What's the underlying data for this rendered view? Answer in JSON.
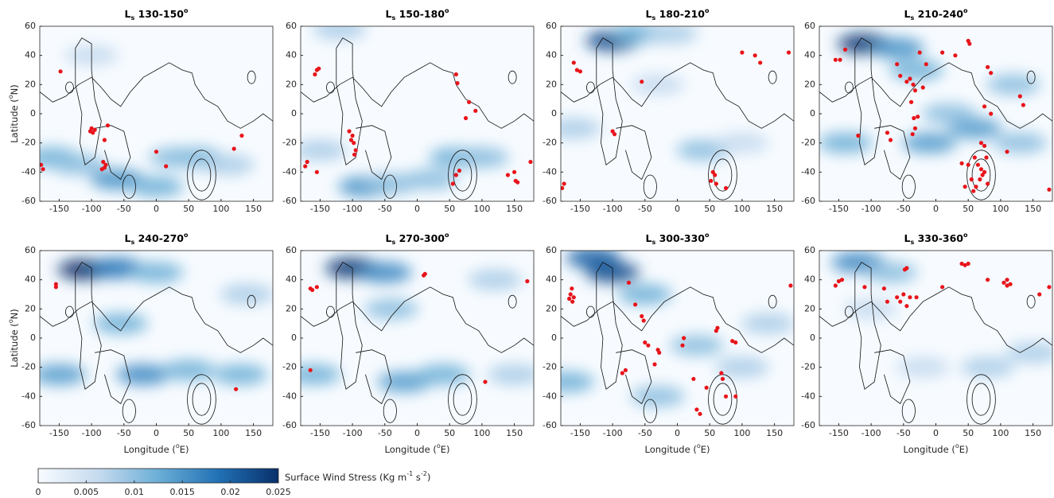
{
  "chart_data": [
    {
      "type": "scatter",
      "title": {
        "symbol": "L",
        "sub": "s",
        "range": " 130-150",
        "sup": "o"
      },
      "ylabel": {
        "text": "Latitude (",
        "sup": "o",
        "end": "N)"
      },
      "xlim": [
        -180,
        180
      ],
      "ylim": [
        -60,
        60
      ],
      "xticks": [
        -150,
        -100,
        -50,
        0,
        50,
        100,
        150
      ],
      "yticks": [
        -60,
        -40,
        -20,
        0,
        20,
        40,
        60
      ],
      "points": {
        "color": "#e8141b",
        "x": [
          -148,
          -178,
          -175,
          -100,
          -98,
          -95,
          -102,
          -75,
          -80,
          -82,
          -80,
          -84,
          -78,
          0,
          15,
          120,
          132
        ],
        "y": [
          29,
          -35,
          -38,
          -10,
          -13,
          -11,
          -12,
          -8,
          -18,
          -33,
          -37,
          -38,
          -35,
          -26,
          -36,
          -24,
          -15
        ]
      },
      "wind": {
        "lon": [
          -160,
          -120,
          -60,
          0,
          60,
          30,
          110,
          -100
        ],
        "lat": [
          -30,
          -35,
          -45,
          -50,
          -30,
          -30,
          -35,
          40
        ],
        "values": [
          0.012,
          0.01,
          0.015,
          0.012,
          0.012,
          0.01,
          0.008,
          0.006
        ]
      }
    },
    {
      "type": "scatter",
      "title": {
        "symbol": "L",
        "sub": "s",
        "range": " 150-180",
        "sup": "o"
      },
      "xlim": [
        -180,
        180
      ],
      "ylim": [
        -60,
        60
      ],
      "xticks": [
        -150,
        -100,
        -50,
        0,
        50,
        100,
        150
      ],
      "yticks": [
        -60,
        -40,
        -20,
        0,
        20,
        40,
        60
      ],
      "points": {
        "color": "#e8141b",
        "x": [
          -158,
          -155,
          -152,
          -170,
          -173,
          -155,
          -105,
          -100,
          -98,
          -95,
          -97,
          -102,
          60,
          62,
          80,
          75,
          90,
          65,
          60,
          55,
          140,
          150,
          152,
          155,
          175
        ],
        "y": [
          27,
          30,
          31,
          -33,
          -36,
          -40,
          -12,
          -15,
          -20,
          -25,
          -28,
          -18,
          27,
          21,
          8,
          -3,
          2,
          -39,
          -42,
          -48,
          -42,
          -40,
          -46,
          -47,
          -33
        ]
      },
      "wind": {
        "lon": [
          -120,
          -80,
          20,
          60,
          100,
          -150,
          -40
        ],
        "lat": [
          58,
          -50,
          -45,
          -30,
          -30,
          -25,
          -48
        ],
        "values": [
          0.008,
          0.015,
          0.01,
          0.012,
          0.01,
          0.008,
          0.01
        ]
      }
    },
    {
      "type": "scatter",
      "title": {
        "symbol": "L",
        "sub": "s",
        "range": " 180-210",
        "sup": "o"
      },
      "xlim": [
        -180,
        180
      ],
      "ylim": [
        -60,
        60
      ],
      "xticks": [
        -150,
        -100,
        -50,
        0,
        50,
        100,
        150
      ],
      "yticks": [
        -60,
        -40,
        -20,
        0,
        20,
        40,
        60
      ],
      "points": {
        "color": "#e8141b",
        "x": [
          -160,
          -155,
          -150,
          -175,
          -178,
          -100,
          -97,
          -55,
          55,
          58,
          52,
          60,
          75,
          100,
          120,
          128,
          172
        ],
        "y": [
          35,
          30,
          29,
          -48,
          -51,
          -12,
          -14,
          22,
          -40,
          -42,
          -46,
          -48,
          -51,
          42,
          40,
          35,
          42
        ]
      },
      "wind": {
        "lon": [
          -100,
          -60,
          -10,
          40,
          -160,
          100,
          -30
        ],
        "lat": [
          50,
          55,
          55,
          -25,
          -10,
          -20,
          20
        ],
        "values": [
          0.022,
          0.012,
          0.008,
          0.01,
          0.008,
          0.006,
          0.006
        ]
      }
    },
    {
      "type": "scatter",
      "title": {
        "symbol": "L",
        "sub": "s",
        "range": " 210-240",
        "sup": "o"
      },
      "xlim": [
        -180,
        180
      ],
      "ylim": [
        -60,
        60
      ],
      "xticks": [
        -150,
        -100,
        -50,
        0,
        50,
        100,
        150
      ],
      "yticks": [
        -60,
        -40,
        -20,
        0,
        20,
        40,
        60
      ],
      "points": {
        "color": "#e8141b",
        "x": [
          -155,
          -148,
          -140,
          -120,
          -75,
          -70,
          -55,
          -60,
          -45,
          -40,
          -35,
          -32,
          -38,
          -34,
          -32,
          -36,
          -28,
          -20,
          -25,
          -15,
          10,
          30,
          50,
          52,
          80,
          85,
          85,
          75,
          110,
          130,
          135,
          175,
          70,
          75,
          60,
          65,
          70,
          72,
          68,
          75,
          55,
          62,
          80,
          50,
          45,
          40,
          78,
          58
        ],
        "y": [
          37,
          37,
          44,
          -15,
          -13,
          -18,
          26,
          34,
          22,
          24,
          20,
          16,
          8,
          -3,
          -10,
          -14,
          -2,
          18,
          42,
          34,
          42,
          40,
          50,
          48,
          32,
          28,
          0,
          5,
          -26,
          12,
          6,
          -52,
          -20,
          -22,
          -30,
          -35,
          -38,
          -42,
          -45,
          -40,
          -45,
          -50,
          -48,
          -35,
          -50,
          -34,
          -30,
          -53
        ]
      },
      "wind": {
        "lon": [
          -110,
          -60,
          -140,
          -10,
          60,
          130,
          -30,
          120,
          20
        ],
        "lat": [
          48,
          45,
          -20,
          -20,
          -10,
          -20,
          30,
          20,
          0
        ],
        "values": [
          0.024,
          0.015,
          0.012,
          0.014,
          0.014,
          0.01,
          0.012,
          0.01,
          0.01
        ]
      }
    },
    {
      "type": "scatter",
      "title": {
        "symbol": "L",
        "sub": "s",
        "range": " 240-270",
        "sup": "o"
      },
      "ylabel": {
        "text": "Latitude (",
        "sup": "o",
        "end": "N)"
      },
      "xlabel": {
        "text": "Longitude (",
        "sup": "o",
        "end": "E)"
      },
      "xlim": [
        -180,
        180
      ],
      "ylim": [
        -60,
        60
      ],
      "xticks": [
        -150,
        -100,
        -50,
        0,
        50,
        100,
        150
      ],
      "yticks": [
        -60,
        -40,
        -20,
        0,
        20,
        40,
        60
      ],
      "points": {
        "color": "#e8141b",
        "x": [
          -155,
          -155,
          123
        ],
        "y": [
          37,
          35,
          -35
        ]
      },
      "wind": {
        "lon": [
          -110,
          -60,
          0,
          -150,
          -20,
          50,
          130,
          -55,
          140
        ],
        "lat": [
          47,
          48,
          45,
          -25,
          -25,
          -22,
          -25,
          10,
          30
        ],
        "values": [
          0.025,
          0.018,
          0.012,
          0.014,
          0.016,
          0.012,
          0.012,
          0.012,
          0.008
        ]
      }
    },
    {
      "type": "scatter",
      "title": {
        "symbol": "L",
        "sub": "s",
        "range": " 270-300",
        "sup": "o"
      },
      "xlabel": {
        "text": "Longitude (",
        "sup": "o",
        "end": "E)"
      },
      "xlim": [
        -180,
        180
      ],
      "ylim": [
        -60,
        60
      ],
      "xticks": [
        -150,
        -100,
        -50,
        0,
        50,
        100,
        150
      ],
      "yticks": [
        -60,
        -40,
        -20,
        0,
        20,
        40,
        60
      ],
      "points": {
        "color": "#e8141b",
        "x": [
          -165,
          -162,
          -155,
          -165,
          10,
          12,
          105,
          170
        ],
        "y": [
          34,
          33,
          35,
          -22,
          43,
          44,
          -30,
          39
        ]
      },
      "wind": {
        "lon": [
          -100,
          -50,
          -160,
          -20,
          40,
          -40,
          120,
          150
        ],
        "lat": [
          48,
          45,
          -25,
          -30,
          -25,
          20,
          40,
          -25
        ],
        "values": [
          0.024,
          0.016,
          0.012,
          0.014,
          0.012,
          0.01,
          0.008,
          0.008
        ]
      }
    },
    {
      "type": "scatter",
      "title": {
        "symbol": "L",
        "sub": "s",
        "range": " 300-330",
        "sup": "o"
      },
      "xlabel": {
        "text": "Longitude (",
        "sup": "o",
        "end": "E)"
      },
      "xlim": [
        -180,
        180
      ],
      "ylim": [
        -60,
        60
      ],
      "xticks": [
        -150,
        -100,
        -50,
        0,
        50,
        100,
        150
      ],
      "yticks": [
        -60,
        -40,
        -20,
        0,
        20,
        40,
        60
      ],
      "points": {
        "color": "#e8141b",
        "x": [
          -163,
          -165,
          -167,
          -160,
          -162,
          -75,
          -65,
          -55,
          -52,
          -50,
          -45,
          -85,
          -80,
          -30,
          -28,
          -35,
          10,
          8,
          25,
          30,
          35,
          45,
          60,
          62,
          85,
          90,
          70,
          68,
          75,
          90,
          175
        ],
        "y": [
          34,
          30,
          27,
          28,
          25,
          38,
          23,
          15,
          12,
          -3,
          -5,
          -24,
          -22,
          -8,
          -10,
          -18,
          0,
          -5,
          -28,
          -49,
          -52,
          -34,
          5,
          7,
          -2,
          -3,
          -28,
          -24,
          -40,
          -40,
          36
        ]
      },
      "wind": {
        "lon": [
          -100,
          -130,
          -50,
          -170,
          -30,
          30,
          100,
          140
        ],
        "lat": [
          45,
          55,
          30,
          -30,
          -40,
          -5,
          -20,
          10
        ],
        "values": [
          0.022,
          0.02,
          0.012,
          0.012,
          0.01,
          0.01,
          0.008,
          0.008
        ]
      }
    },
    {
      "type": "scatter",
      "title": {
        "symbol": "L",
        "sub": "s",
        "range": " 330-360",
        "sup": "o"
      },
      "xlabel": {
        "text": "Longitude (",
        "sup": "o",
        "end": "E)"
      },
      "xlim": [
        -180,
        180
      ],
      "ylim": [
        -60,
        60
      ],
      "xticks": [
        -150,
        -100,
        -50,
        0,
        50,
        100,
        150
      ],
      "yticks": [
        -60,
        -40,
        -20,
        0,
        20,
        40,
        60
      ],
      "points": {
        "color": "#e8141b",
        "x": [
          -155,
          -150,
          -145,
          -110,
          -80,
          -75,
          -60,
          -55,
          -48,
          -45,
          -40,
          -30,
          -50,
          -45,
          10,
          40,
          45,
          50,
          80,
          105,
          110,
          110,
          115,
          160,
          175
        ],
        "y": [
          36,
          39,
          40,
          35,
          34,
          25,
          28,
          25,
          47,
          48,
          28,
          28,
          30,
          22,
          35,
          51,
          50,
          51,
          40,
          38,
          36,
          40,
          37,
          30,
          35
        ]
      },
      "wind": {
        "lon": [
          -120,
          -70,
          -100,
          -20,
          80,
          150
        ],
        "lat": [
          52,
          45,
          20,
          -20,
          -20,
          -10
        ],
        "values": [
          0.016,
          0.01,
          0.006,
          0.006,
          0.008,
          0.008
        ]
      }
    }
  ],
  "colorbar": {
    "label": {
      "text": "Surface Wind Stress (Kg m",
      "sup1": "-1",
      "mid": " s",
      "sup2": "-2",
      "end": ")"
    },
    "lim": [
      0,
      0.025
    ],
    "ticks": [
      0,
      0.005,
      0.01,
      0.015,
      0.02,
      0.025
    ],
    "colors": [
      "#f7fbff",
      "#c6dbef",
      "#6baed6",
      "#2171b5",
      "#08306b"
    ]
  }
}
